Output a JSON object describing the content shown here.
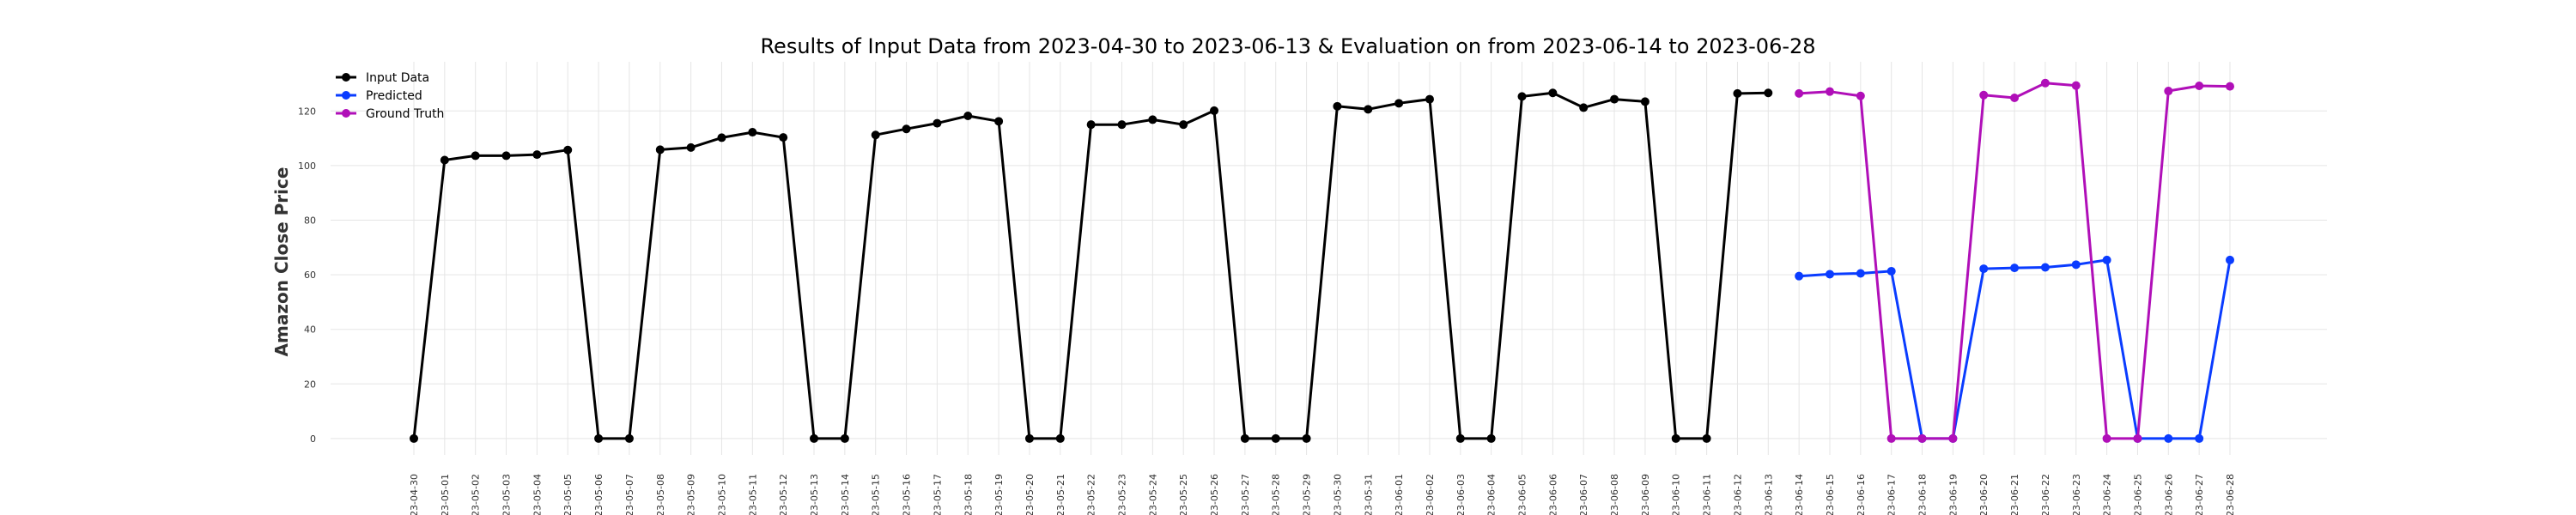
{
  "chart_data": {
    "type": "line",
    "title": "Results of Input Data from 2023-04-30 to 2023-06-13 & Evaluation on from 2023-06-14 to 2023-06-28",
    "xlabel": "",
    "ylabel": "Amazon Close Price",
    "ylim": [
      -6,
      138
    ],
    "yticks": [
      0,
      20,
      40,
      60,
      80,
      100,
      120
    ],
    "grid": true,
    "legend_position": "top-left",
    "categories": [
      "2023-04-30",
      "2023-05-01",
      "2023-05-02",
      "2023-05-03",
      "2023-05-04",
      "2023-05-05",
      "2023-05-06",
      "2023-05-07",
      "2023-05-08",
      "2023-05-09",
      "2023-05-10",
      "2023-05-11",
      "2023-05-12",
      "2023-05-13",
      "2023-05-14",
      "2023-05-15",
      "2023-05-16",
      "2023-05-17",
      "2023-05-18",
      "2023-05-19",
      "2023-05-20",
      "2023-05-21",
      "2023-05-22",
      "2023-05-23",
      "2023-05-24",
      "2023-05-25",
      "2023-05-26",
      "2023-05-27",
      "2023-05-28",
      "2023-05-29",
      "2023-05-30",
      "2023-05-31",
      "2023-06-01",
      "2023-06-02",
      "2023-06-03",
      "2023-06-04",
      "2023-06-05",
      "2023-06-06",
      "2023-06-07",
      "2023-06-08",
      "2023-06-09",
      "2023-06-10",
      "2023-06-11",
      "2023-06-12",
      "2023-06-13",
      "2023-06-14",
      "2023-06-15",
      "2023-06-16",
      "2023-06-17",
      "2023-06-18",
      "2023-06-19",
      "2023-06-20",
      "2023-06-21",
      "2023-06-22",
      "2023-06-23",
      "2023-06-24",
      "2023-06-25",
      "2023-06-26",
      "2023-06-27",
      "2023-06-28"
    ],
    "tick_labels": [
      "-23-04-30",
      "-23-05-01",
      "-23-05-02",
      "-23-05-03",
      "-23-05-04",
      "-23-05-05",
      "-23-05-06",
      "-23-05-07",
      "-23-05-08",
      "-23-05-09",
      "-23-05-10",
      "-23-05-11",
      "-23-05-12",
      "-23-05-13",
      "-23-05-14",
      "-23-05-15",
      "-23-05-16",
      "-23-05-17",
      "-23-05-18",
      "-23-05-19",
      "-23-05-20",
      "-23-05-21",
      "-23-05-22",
      "-23-05-23",
      "-23-05-24",
      "-23-05-25",
      "-23-05-26",
      "-23-05-27",
      "-23-05-28",
      "-23-05-29",
      "-23-05-30",
      "-23-05-31",
      "-23-06-01",
      "-23-06-02",
      "-23-06-03",
      "-23-06-04",
      "-23-06-05",
      "-23-06-06",
      "-23-06-07",
      "-23-06-08",
      "-23-06-09",
      "-23-06-10",
      "-23-06-11",
      "-23-06-12",
      "-23-06-13",
      "-23-06-14",
      "-23-06-15",
      "-23-06-16",
      "-23-06-17",
      "-23-06-18",
      "-23-06-19",
      "-23-06-20",
      "-23-06-21",
      "-23-06-22",
      "-23-06-23",
      "-23-06-24",
      "-23-06-25",
      "-23-06-26",
      "-23-06-27",
      "-23-06-28"
    ],
    "series": [
      {
        "name": "Input Data",
        "color": "#000000",
        "x": [
          "2023-04-30",
          "2023-05-01",
          "2023-05-02",
          "2023-05-03",
          "2023-05-04",
          "2023-05-05",
          "2023-05-06",
          "2023-05-07",
          "2023-05-08",
          "2023-05-09",
          "2023-05-10",
          "2023-05-11",
          "2023-05-12",
          "2023-05-13",
          "2023-05-14",
          "2023-05-15",
          "2023-05-16",
          "2023-05-17",
          "2023-05-18",
          "2023-05-19",
          "2023-05-20",
          "2023-05-21",
          "2023-05-22",
          "2023-05-23",
          "2023-05-24",
          "2023-05-25",
          "2023-05-26",
          "2023-05-27",
          "2023-05-28",
          "2023-05-29",
          "2023-05-30",
          "2023-05-31",
          "2023-06-01",
          "2023-06-02",
          "2023-06-03",
          "2023-06-04",
          "2023-06-05",
          "2023-06-06",
          "2023-06-07",
          "2023-06-08",
          "2023-06-09",
          "2023-06-10",
          "2023-06-11",
          "2023-06-12",
          "2023-06-13"
        ],
        "values": [
          0,
          102.0,
          103.6,
          103.6,
          104.0,
          105.7,
          0,
          0,
          105.8,
          106.6,
          110.2,
          112.2,
          110.3,
          0,
          0,
          111.2,
          113.4,
          115.5,
          118.2,
          116.2,
          0,
          0,
          115.0,
          115.0,
          116.8,
          115.0,
          120.1,
          0,
          0,
          0,
          121.7,
          120.6,
          122.8,
          124.3,
          0,
          0,
          125.3,
          126.6,
          121.2,
          124.3,
          123.4,
          0,
          0,
          126.4,
          126.6
        ]
      },
      {
        "name": "Predicted",
        "color": "#0a3cff",
        "x": [
          "2023-06-14",
          "2023-06-15",
          "2023-06-16",
          "2023-06-17",
          "2023-06-18",
          "2023-06-19",
          "2023-06-20",
          "2023-06-21",
          "2023-06-22",
          "2023-06-23",
          "2023-06-24",
          "2023-06-25",
          "2023-06-26",
          "2023-06-27",
          "2023-06-28"
        ],
        "values": [
          59.5,
          60.2,
          60.5,
          61.3,
          0,
          0,
          62.2,
          62.5,
          62.7,
          63.7,
          65.4,
          0,
          0,
          0,
          65.4
        ]
      },
      {
        "name": "Ground Truth",
        "color": "#b00fb8",
        "x": [
          "2023-06-14",
          "2023-06-15",
          "2023-06-16",
          "2023-06-17",
          "2023-06-18",
          "2023-06-19",
          "2023-06-20",
          "2023-06-21",
          "2023-06-22",
          "2023-06-23",
          "2023-06-24",
          "2023-06-25",
          "2023-06-26",
          "2023-06-27",
          "2023-06-28"
        ],
        "values": [
          126.4,
          127.1,
          125.5,
          0,
          0,
          0,
          125.8,
          124.8,
          130.2,
          129.3,
          0,
          0,
          127.3,
          129.2,
          129.0
        ]
      }
    ]
  }
}
